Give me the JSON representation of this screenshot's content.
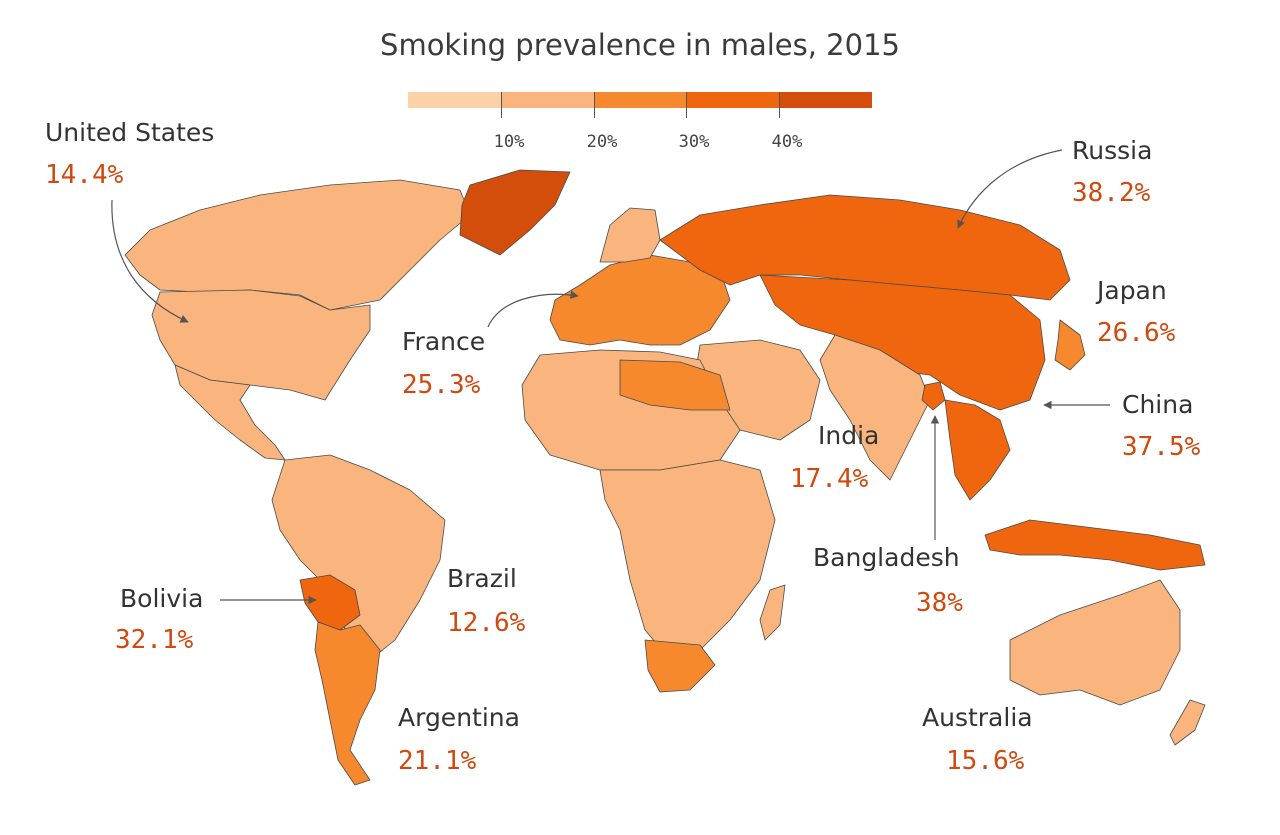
{
  "title": "Smoking prevalence in males, 2015",
  "colors": {
    "bin1": "#fbd1a8",
    "bin2": "#f9b57d",
    "bin3": "#f6882e",
    "bin4": "#f0660e",
    "bin5": "#d24e0a",
    "value_text": "#d0490f",
    "border": "#4a4a4a",
    "leader": "#555555"
  },
  "legend": {
    "ticks": [
      "10%",
      "20%",
      "30%",
      "40%"
    ],
    "bins": [
      "bin1",
      "bin2",
      "bin3",
      "bin4",
      "bin5"
    ]
  },
  "countries": [
    {
      "label": "United States",
      "value": "14.4%",
      "bin": "bin2"
    },
    {
      "label": "Russia",
      "value": "38.2%",
      "bin": "bin4"
    },
    {
      "label": "Japan",
      "value": "26.6%",
      "bin": "bin3"
    },
    {
      "label": "France",
      "value": "25.3%",
      "bin": "bin3"
    },
    {
      "label": "China",
      "value": "37.5%",
      "bin": "bin4"
    },
    {
      "label": "India",
      "value": "17.4%",
      "bin": "bin2"
    },
    {
      "label": "Bangladesh",
      "value": "38%",
      "bin": "bin4"
    },
    {
      "label": "Brazil",
      "value": "12.6%",
      "bin": "bin2"
    },
    {
      "label": "Bolivia",
      "value": "32.1%",
      "bin": "bin4"
    },
    {
      "label": "Argentina",
      "value": "21.1%",
      "bin": "bin3"
    },
    {
      "label": "Australia",
      "value": "15.6%",
      "bin": "bin2"
    }
  ]
}
